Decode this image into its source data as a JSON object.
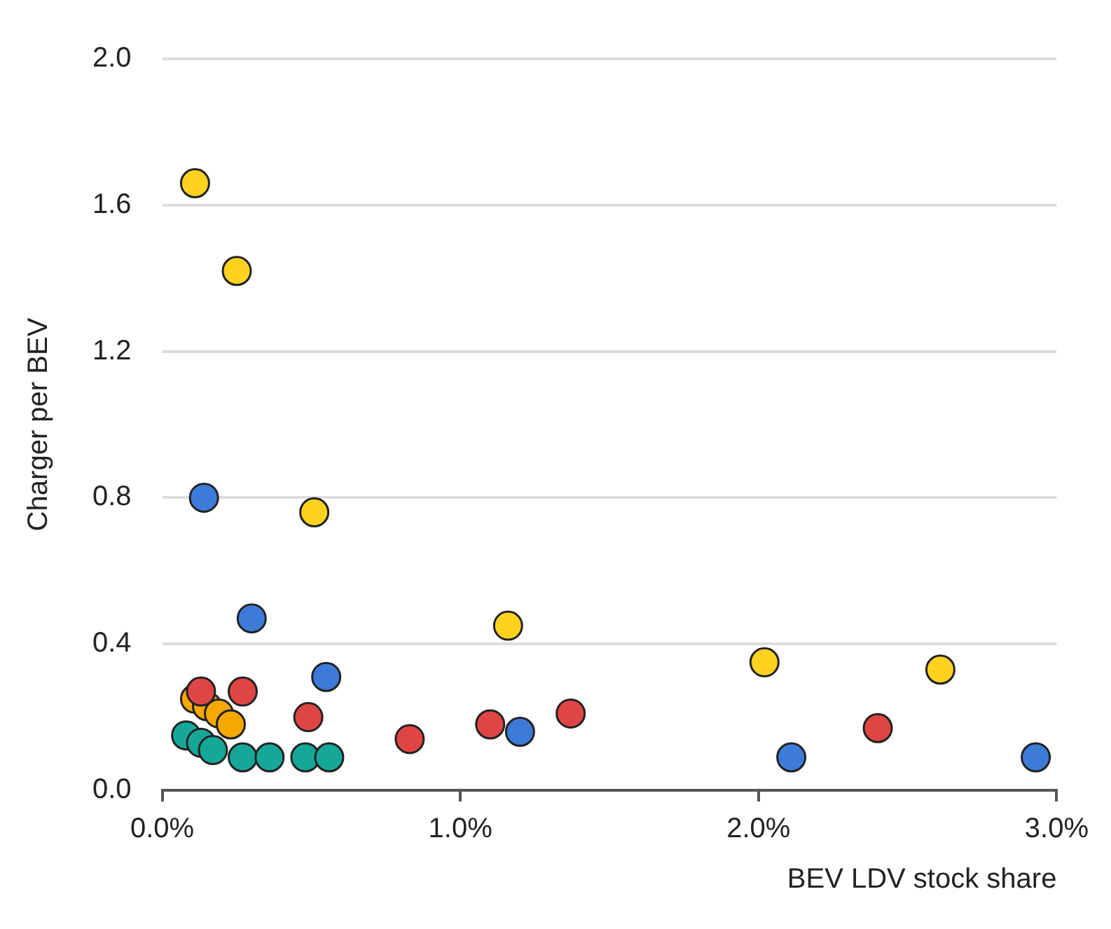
{
  "chart_data": {
    "type": "scatter",
    "xlabel": "BEV LDV stock share",
    "ylabel": "Charger per BEV",
    "xlim": [
      0,
      3
    ],
    "xticks": [
      {
        "value": 0,
        "label": "0.0%"
      },
      {
        "value": 1,
        "label": "1.0%"
      },
      {
        "value": 2,
        "label": "2.0%"
      },
      {
        "value": 3,
        "label": "3.0%"
      }
    ],
    "ylim": [
      0,
      2
    ],
    "yticks": [
      {
        "value": 0,
        "label": "0.0"
      },
      {
        "value": 0.4,
        "label": "0.4"
      },
      {
        "value": 0.8,
        "label": "0.8"
      },
      {
        "value": 1.2,
        "label": "1.2"
      },
      {
        "value": 1.6,
        "label": "1.6"
      },
      {
        "value": 2,
        "label": "2.0"
      }
    ],
    "grid": "y",
    "legend": false,
    "marker": "circle",
    "series": [
      {
        "color": "#15a898",
        "x": [
          0.08,
          0.13,
          0.17,
          0.27,
          0.36,
          0.48,
          0.56
        ],
        "values": [
          0.15,
          0.13,
          0.11,
          0.09,
          0.09,
          0.09,
          0.09
        ]
      },
      {
        "color": "#e04545",
        "x": [
          0.13,
          0.27,
          0.49,
          0.83,
          1.1,
          1.37,
          2.4
        ],
        "values": [
          0.27,
          0.27,
          0.2,
          0.14,
          0.18,
          0.21,
          0.17
        ]
      },
      {
        "color": "#f5a800",
        "x": [
          0.11,
          0.15,
          0.19,
          0.23
        ],
        "values": [
          0.25,
          0.23,
          0.21,
          0.18
        ]
      },
      {
        "color": "#3d7bd9",
        "x": [
          0.14,
          0.3,
          0.55,
          1.2,
          2.11,
          2.93
        ],
        "values": [
          0.8,
          0.47,
          0.31,
          0.16,
          0.09,
          0.09
        ]
      },
      {
        "color": "#ffd21f",
        "x": [
          0.11,
          0.25,
          0.51,
          1.16,
          2.02,
          2.61
        ],
        "values": [
          1.66,
          1.42,
          0.76,
          0.45,
          0.35,
          0.33
        ]
      }
    ]
  }
}
